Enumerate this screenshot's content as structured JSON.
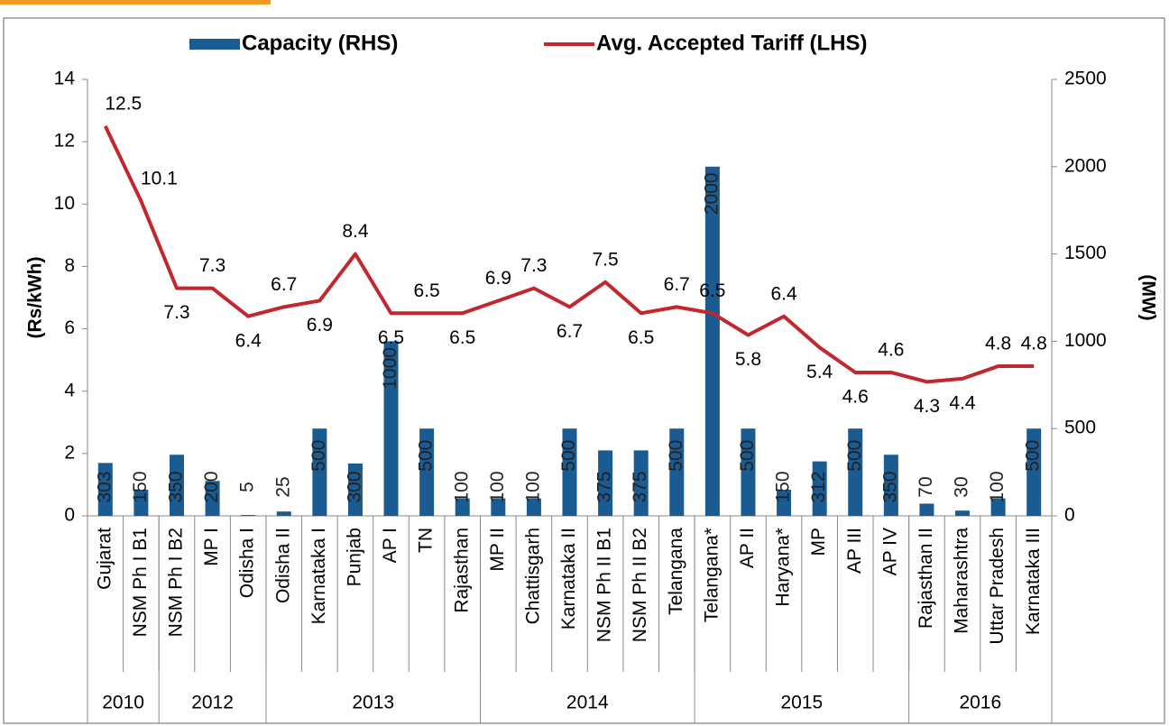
{
  "chart_data": {
    "type": "bar-line",
    "legend": [
      "Capacity (RHS)",
      "Avg. Accepted Tariff (LHS)"
    ],
    "ylabel": "(Rs/kWh)",
    "y2label": "(MW)",
    "categories": [
      "Gujarat",
      "NSM Ph I B1",
      "NSM Ph I B2",
      "MP I",
      "Odisha I",
      "Odisha II",
      "Karnataka I",
      "Punjab",
      "AP I",
      "TN",
      "Rajasthan",
      "MP II",
      "Chattisgarh",
      "Karnataka II",
      "NSM Ph II B1",
      "NSM Ph II B2",
      "Telangana",
      "Telangana*",
      "AP II",
      "Haryana*",
      "MP",
      "AP III",
      "AP IV",
      "Rajasthan II",
      "Maharashtra",
      "Uttar Pradesh",
      "Karnataka III"
    ],
    "groups": [
      {
        "label": "2010",
        "size": 2
      },
      {
        "label": "2012",
        "size": 3
      },
      {
        "label": "2013",
        "size": 6
      },
      {
        "label": "2014",
        "size": 6
      },
      {
        "label": "2015",
        "size": 6
      },
      {
        "label": "2016",
        "size": 4
      }
    ],
    "series": [
      {
        "name": "Capacity (RHS)",
        "type": "bar",
        "axis": "y2",
        "color": "#1a5b92",
        "values": [
          303,
          150,
          350,
          200,
          5,
          25,
          500,
          300,
          1000,
          500,
          100,
          100,
          100,
          500,
          375,
          375,
          500,
          2000,
          500,
          150,
          312,
          500,
          350,
          70,
          30,
          100,
          500
        ]
      },
      {
        "name": "Avg. Accepted Tariff (LHS)",
        "type": "line",
        "axis": "y",
        "color": "#c1272d",
        "values": [
          12.5,
          10.1,
          7.3,
          7.3,
          6.4,
          6.7,
          6.9,
          8.4,
          6.5,
          6.5,
          6.5,
          6.9,
          7.3,
          6.7,
          7.5,
          6.5,
          6.7,
          6.5,
          5.8,
          6.4,
          5.4,
          4.6,
          4.6,
          4.3,
          4.4,
          4.8,
          4.8
        ]
      }
    ],
    "ylim": [
      0,
      14
    ],
    "yticks": [
      0,
      2,
      4,
      6,
      8,
      10,
      12,
      14
    ],
    "y2lim": [
      0,
      2500
    ],
    "y2ticks": [
      0,
      500,
      1000,
      1500,
      2000,
      2500
    ]
  }
}
